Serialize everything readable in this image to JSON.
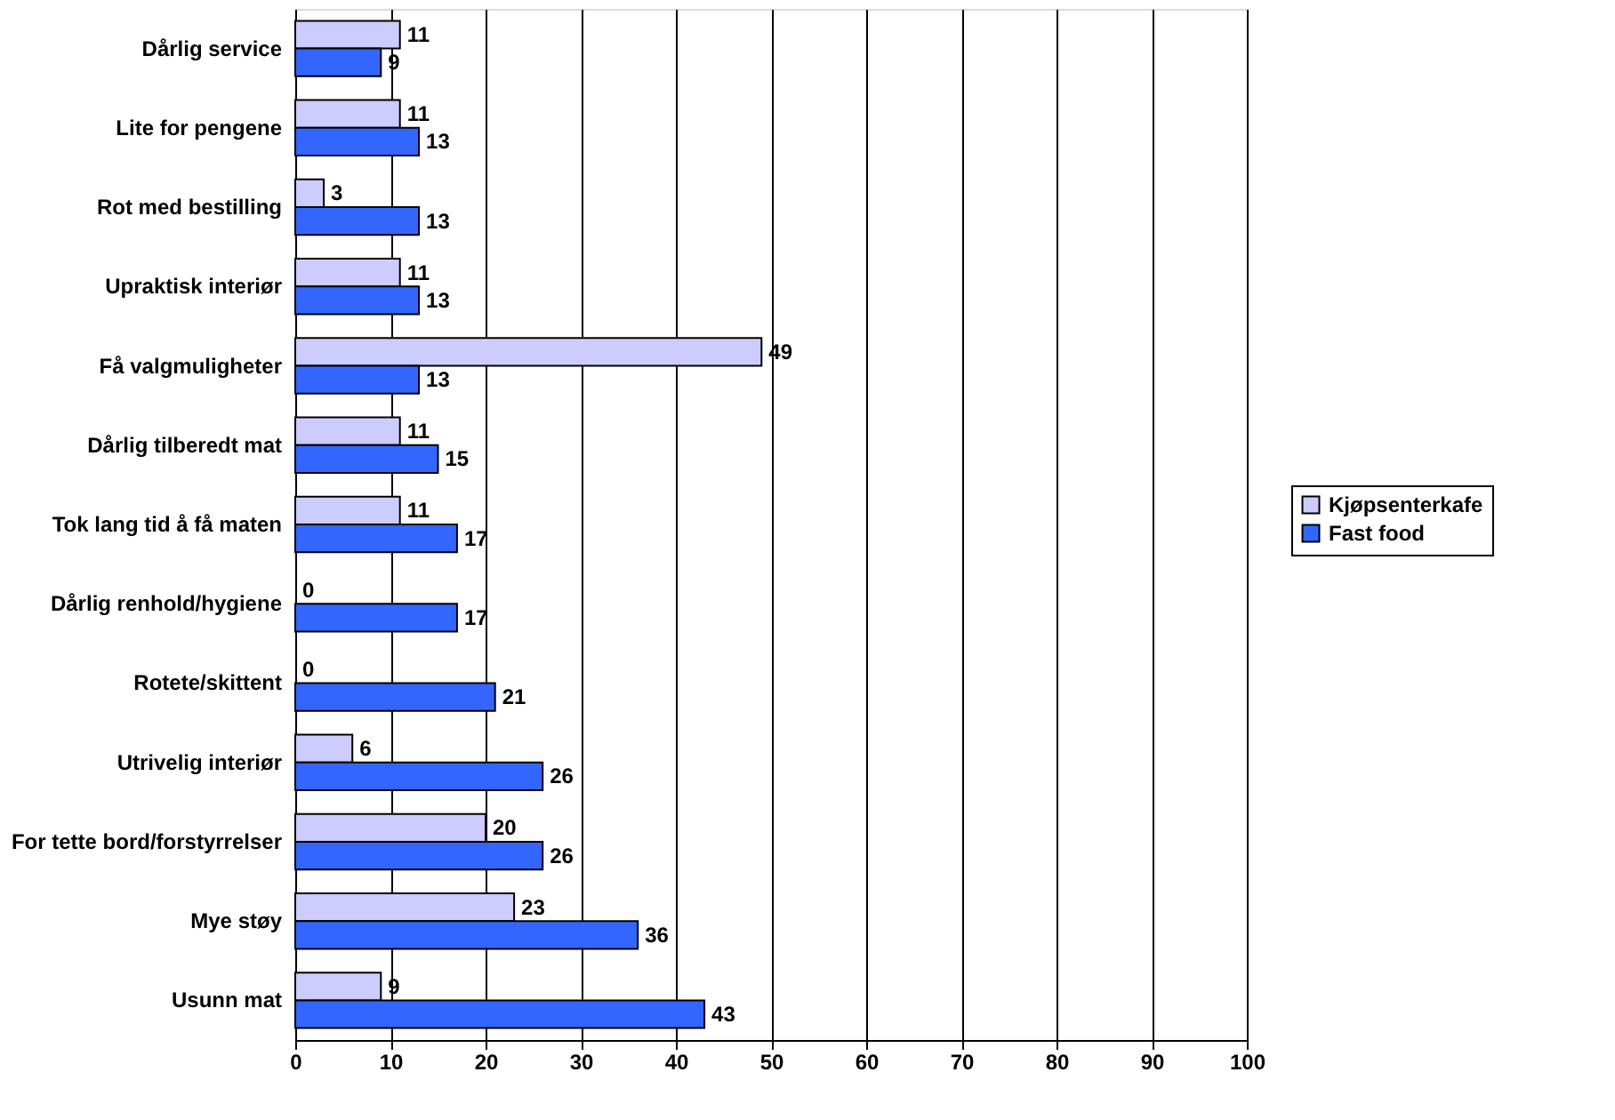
{
  "chart_data": {
    "type": "bar",
    "orientation": "horizontal",
    "categories": [
      "Dårlig service",
      "Lite for pengene",
      "Rot med bestilling",
      "Upraktisk interiør",
      "Få valgmuligheter",
      "Dårlig tilberedt mat",
      "Tok lang tid å få maten",
      "Dårlig renhold/hygiene",
      "Rotete/skittent",
      "Utrivelig interiør",
      "For tette bord/forstyrrelser",
      "Mye støy",
      "Usunn mat"
    ],
    "series": [
      {
        "name": "Kjøpsenterkafe",
        "color": "#ccccff",
        "values": [
          11,
          11,
          3,
          11,
          49,
          11,
          11,
          0,
          0,
          6,
          20,
          23,
          9
        ]
      },
      {
        "name": "Fast food",
        "color": "#3366ff",
        "values": [
          9,
          13,
          13,
          13,
          13,
          15,
          17,
          17,
          21,
          26,
          26,
          36,
          43
        ]
      }
    ],
    "xlim": [
      0,
      100
    ],
    "xticks": [
      0,
      10,
      20,
      30,
      40,
      50,
      60,
      70,
      80,
      90,
      100
    ],
    "grid": "x",
    "legend": "right",
    "data_labels": true
  }
}
